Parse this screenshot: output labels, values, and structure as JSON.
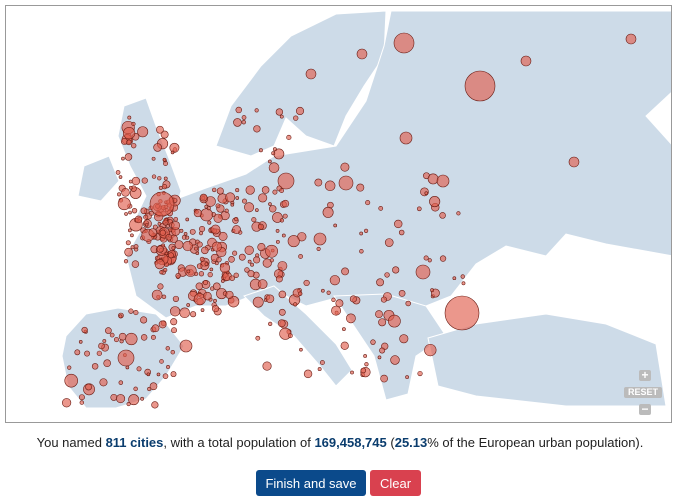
{
  "summary": {
    "prefix": "You named",
    "count": "811 cities",
    "middle": ", with a total population of",
    "population": "169,458,745",
    "open": "(",
    "percent": "25.13",
    "suffix": "% of the European urban population)."
  },
  "controls": {
    "zoom_in": "+",
    "reset": "RESET",
    "zoom_out": "−"
  },
  "buttons": {
    "finish": "Finish and save",
    "clear": "Clear"
  }
}
